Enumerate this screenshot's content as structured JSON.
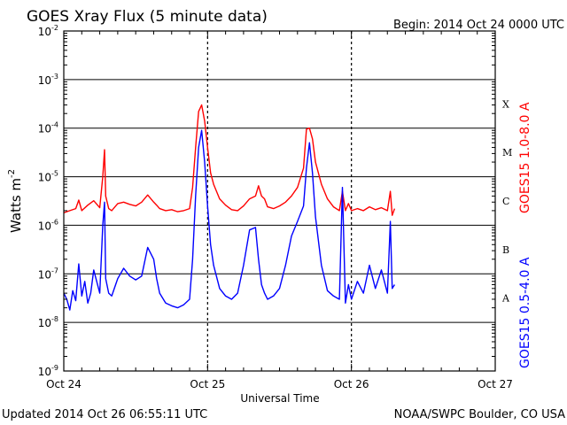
{
  "title": "GOES Xray Flux (5 minute data)",
  "begin_label": "Begin:  2014 Oct 24 0000 UTC",
  "footer_left": "Updated 2014 Oct 26 06:55:11 UTC",
  "footer_right": "NOAA/SWPC Boulder, CO USA",
  "chart_data": {
    "type": "line",
    "xlabel": "Universal Time",
    "ylabel": {
      "base": "Watts m",
      "superscript": "-2"
    },
    "x_units": "hours since 2014 Oct 24 0000 UTC",
    "xlim": [
      0,
      72
    ],
    "x_ticks": [
      {
        "hour": 0,
        "label": "Oct 24"
      },
      {
        "hour": 24,
        "label": "Oct 25"
      },
      {
        "hour": 48,
        "label": "Oct 26"
      },
      {
        "hour": 72,
        "label": "Oct 27"
      }
    ],
    "y_scale": "log",
    "ylim": [
      1e-09,
      0.01
    ],
    "y_ticks": [
      {
        "value": 1e-09,
        "base": "10",
        "exp": "-9"
      },
      {
        "value": 1e-08,
        "base": "10",
        "exp": "-8"
      },
      {
        "value": 1e-07,
        "base": "10",
        "exp": "-7"
      },
      {
        "value": 1e-06,
        "base": "10",
        "exp": "-6"
      },
      {
        "value": 1e-05,
        "base": "10",
        "exp": "-5"
      },
      {
        "value": 0.0001,
        "base": "10",
        "exp": "-4"
      },
      {
        "value": 0.001,
        "base": "10",
        "exp": "-3"
      },
      {
        "value": 0.01,
        "base": "10",
        "exp": "-2"
      }
    ],
    "flare_classes": [
      {
        "label": "A",
        "y_value": 3.16e-08
      },
      {
        "label": "B",
        "y_value": 3.16e-07
      },
      {
        "label": "C",
        "y_value": 3.16e-06
      },
      {
        "label": "M",
        "y_value": 3.16e-05
      },
      {
        "label": "X",
        "y_value": 0.000316
      }
    ],
    "grid": "horizontal lines at each decade; dashed vertical lines at day boundaries",
    "series": [
      {
        "name": "GOES15 1.0-8.0 A",
        "color": "#ff0000",
        "x": [
          0,
          1,
          2,
          2.5,
          3,
          4,
          5,
          6,
          6.5,
          6.8,
          7,
          7.5,
          8,
          9,
          10,
          11,
          12,
          13,
          14,
          15,
          15.5,
          16,
          17,
          18,
          19,
          20,
          21,
          21.5,
          22,
          22.5,
          23,
          23.5,
          24,
          24.5,
          25,
          26,
          27,
          28,
          29,
          30,
          31,
          32,
          32.5,
          33,
          33.5,
          34,
          35,
          36,
          37,
          38,
          39,
          40,
          40.5,
          41,
          41.5,
          42,
          43,
          44,
          45,
          46,
          46.5,
          47,
          47.5,
          48,
          49,
          50,
          51,
          52,
          53,
          54,
          54.5,
          54.8,
          55.2
        ],
        "values": [
          1.8e-06,
          2e-06,
          2.2e-06,
          3.3e-06,
          2e-06,
          2.6e-06,
          3.2e-06,
          2.3e-06,
          1e-05,
          3.6e-05,
          4e-06,
          2.2e-06,
          2e-06,
          2.8e-06,
          3e-06,
          2.7e-06,
          2.5e-06,
          3e-06,
          4.2e-06,
          3e-06,
          2.6e-06,
          2.2e-06,
          2e-06,
          2.1e-06,
          1.9e-06,
          2e-06,
          2.2e-06,
          6e-06,
          4e-05,
          0.00022,
          0.0003,
          0.00014,
          4e-05,
          1.2e-05,
          7e-06,
          3.5e-06,
          2.6e-06,
          2.1e-06,
          2e-06,
          2.5e-06,
          3.5e-06,
          4e-06,
          6.5e-06,
          4e-06,
          3.5e-06,
          2.4e-06,
          2.2e-06,
          2.5e-06,
          3e-06,
          4e-06,
          6e-06,
          1.5e-05,
          9.5e-05,
          0.0001,
          6e-05,
          2e-05,
          7e-06,
          3.5e-06,
          2.4e-06,
          2e-06,
          5e-06,
          2e-06,
          2.8e-06,
          2e-06,
          2.2e-06,
          2e-06,
          2.4e-06,
          2.1e-06,
          2.3e-06,
          2e-06,
          5e-06,
          1.6e-06,
          2.2e-06
        ]
      },
      {
        "name": "GOES15 0.5-4.0 A",
        "color": "#0000ff",
        "x": [
          0,
          0.5,
          1,
          1.5,
          2,
          2.5,
          3,
          3.5,
          4,
          4.5,
          5,
          6,
          6.5,
          6.8,
          7,
          7.5,
          8,
          9,
          10,
          11,
          12,
          13,
          14,
          15,
          15.5,
          16,
          17,
          18,
          19,
          20,
          21,
          21.5,
          22,
          22.5,
          23,
          23.5,
          24,
          24.5,
          25,
          26,
          27,
          28,
          29,
          30,
          31,
          32,
          32.5,
          33,
          33.5,
          34,
          35,
          36,
          37,
          38,
          39,
          40,
          40.5,
          41,
          41.5,
          42,
          43,
          44,
          45,
          46,
          46.5,
          47,
          47.5,
          48,
          49,
          50,
          51,
          52,
          53,
          54,
          54.5,
          54.8,
          55.2
        ],
        "values": [
          4e-08,
          3e-08,
          1.8e-08,
          4.5e-08,
          2.8e-08,
          1.6e-07,
          3.5e-08,
          7e-08,
          2.5e-08,
          4e-08,
          1.2e-07,
          4e-08,
          1e-06,
          3e-06,
          8e-08,
          4e-08,
          3.5e-08,
          8e-08,
          1.3e-07,
          9e-08,
          7.5e-08,
          9e-08,
          3.5e-07,
          2e-07,
          8e-08,
          4e-08,
          2.5e-08,
          2.2e-08,
          2e-08,
          2.3e-08,
          3e-08,
          2e-07,
          4e-06,
          4e-05,
          9e-05,
          2e-05,
          2.5e-06,
          4e-07,
          1.5e-07,
          5e-08,
          3.5e-08,
          3e-08,
          4e-08,
          1.5e-07,
          8e-07,
          9e-07,
          2e-07,
          6e-08,
          4e-08,
          3e-08,
          3.5e-08,
          5e-08,
          1.5e-07,
          6e-07,
          1.2e-06,
          2.5e-06,
          1.5e-05,
          5e-05,
          1.2e-05,
          1.5e-06,
          1.5e-07,
          4.5e-08,
          3.5e-08,
          3e-08,
          6e-06,
          2.5e-08,
          6e-08,
          3e-08,
          7e-08,
          4e-08,
          1.5e-07,
          5e-08,
          1.2e-07,
          4e-08,
          1.2e-06,
          5e-08,
          6e-08
        ]
      }
    ]
  }
}
